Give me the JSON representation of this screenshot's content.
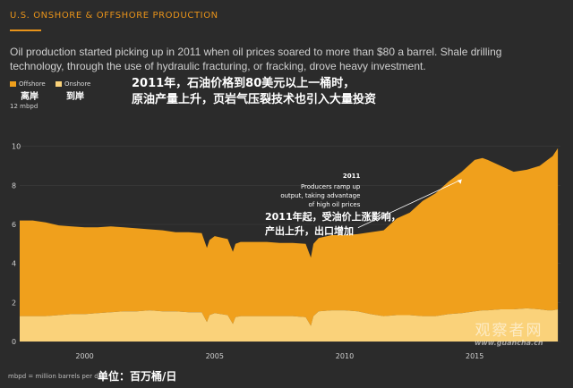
{
  "header": {
    "kicker": "U.S. ONSHORE & OFFSHORE PRODUCTION",
    "subtitle": "Oil production started picking up in 2011 when oil prices soared to more than $80 a barrel. Shale drilling technology, through the use of hydraulic fracturing, or fracking, drove heavy investment."
  },
  "overlay_zh": {
    "line1": "2011年，石油价格到80美元以上一桶时，",
    "line2": "原油产量上升，页岩气压裂技术也引入大量投资",
    "unit": "单位：百万桶/日",
    "annotation_line1": "2011年起，受油价上涨影响，",
    "annotation_line2": "产出上升，出口增加"
  },
  "legend": {
    "offshore": {
      "label": "Offshore",
      "label_zh": "离岸",
      "color": "#f0a01c"
    },
    "onshore": {
      "label": "Onshore",
      "label_zh": "到岸",
      "color": "#fad27a"
    }
  },
  "watermark": {
    "text_zh": "观察者网",
    "url": "www.guancha.cn"
  },
  "footnote": "mbpd = million barrels per day",
  "chart_data": {
    "type": "area",
    "stacked": true,
    "title": "U.S. ONSHORE & OFFSHORE PRODUCTION",
    "xlabel": "",
    "ylabel": "12 mbpd",
    "ylim": [
      0,
      12
    ],
    "xlim": [
      1997.5,
      2018.3
    ],
    "yticks": [
      0,
      2,
      4,
      6,
      8,
      10
    ],
    "xticks": [
      2000,
      2005,
      2010,
      2015
    ],
    "grid": true,
    "annotation": {
      "year": "2011",
      "text": [
        "Producers ramp up",
        "output, taking advantage",
        "of high oil prices"
      ],
      "x": 2011.2,
      "y": 5.6
    },
    "x": [
      1997.5,
      1998.0,
      1998.5,
      1999.0,
      1999.5,
      2000.0,
      2000.5,
      2001.0,
      2001.5,
      2002.0,
      2002.5,
      2003.0,
      2003.5,
      2004.0,
      2004.5,
      2004.7,
      2004.8,
      2005.0,
      2005.5,
      2005.7,
      2005.8,
      2006.0,
      2006.5,
      2007.0,
      2007.5,
      2008.0,
      2008.5,
      2008.7,
      2008.8,
      2009.0,
      2009.5,
      2010.0,
      2010.5,
      2011.0,
      2011.5,
      2012.0,
      2012.5,
      2013.0,
      2013.5,
      2014.0,
      2014.5,
      2015.0,
      2015.3,
      2015.5,
      2016.0,
      2016.5,
      2017.0,
      2017.5,
      2017.8,
      2018.0,
      2018.2
    ],
    "series": [
      {
        "name": "Onshore",
        "color": "#fad27a",
        "values": [
          1.3,
          1.3,
          1.3,
          1.35,
          1.4,
          1.4,
          1.45,
          1.5,
          1.55,
          1.55,
          1.6,
          1.55,
          1.55,
          1.5,
          1.5,
          1.0,
          1.35,
          1.45,
          1.35,
          0.9,
          1.25,
          1.3,
          1.3,
          1.3,
          1.3,
          1.3,
          1.25,
          0.8,
          1.3,
          1.55,
          1.6,
          1.6,
          1.55,
          1.4,
          1.3,
          1.35,
          1.35,
          1.3,
          1.3,
          1.4,
          1.45,
          1.55,
          1.6,
          1.6,
          1.65,
          1.65,
          1.7,
          1.65,
          1.6,
          1.6,
          1.65
        ]
      },
      {
        "name": "Offshore",
        "color": "#f0a01c",
        "values": [
          6.2,
          6.2,
          6.1,
          5.95,
          5.9,
          5.85,
          5.85,
          5.9,
          5.85,
          5.8,
          5.75,
          5.7,
          5.6,
          5.6,
          5.55,
          4.8,
          5.2,
          5.4,
          5.25,
          4.6,
          5.0,
          5.1,
          5.1,
          5.1,
          5.05,
          5.05,
          5.0,
          4.3,
          5.0,
          5.3,
          5.45,
          5.45,
          5.5,
          5.6,
          5.7,
          6.3,
          6.6,
          7.2,
          7.6,
          8.2,
          8.7,
          9.3,
          9.4,
          9.3,
          9.0,
          8.7,
          8.8,
          9.0,
          9.3,
          9.5,
          9.9
        ]
      }
    ]
  }
}
